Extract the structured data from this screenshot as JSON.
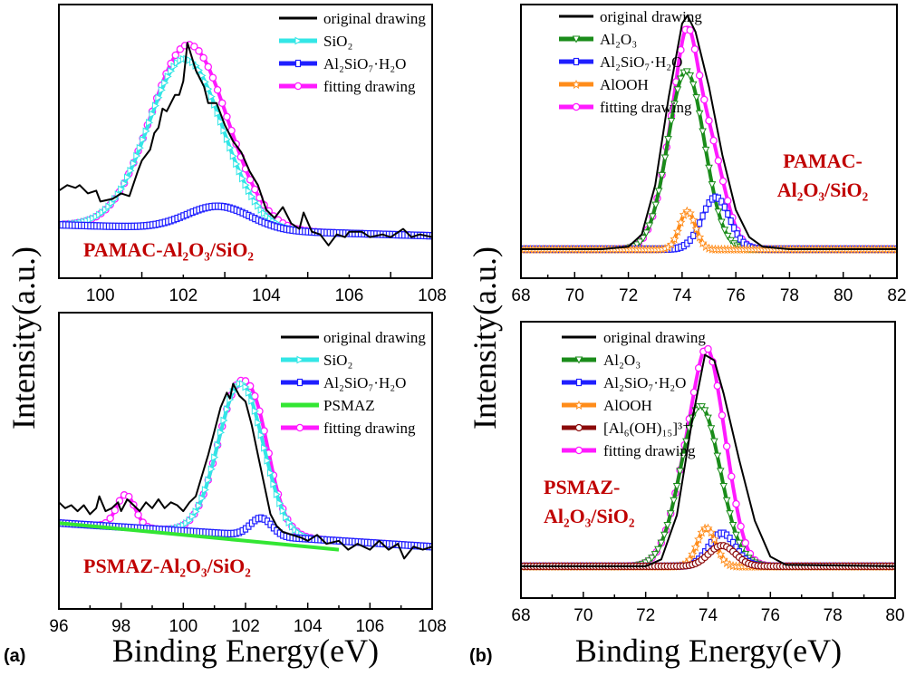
{
  "panel_labels": [
    "(a)",
    "(b)"
  ],
  "ylabel": "Intensity(a.u.)",
  "xlabel": "Binding Energy(eV)",
  "colors": {
    "original drawing": "#000000",
    "SiO₂": "#33e6e6",
    "Al₂SiO₇·H₂O": "#1f1fff",
    "PSMAZ": "#33e633",
    "fitting drawing": "#ff1aff",
    "Al₂O₃": "#1a8c1a",
    "AlOOH": "#ff8c1a",
    "[Al₆(OH)₁₅]³⁺": "#8b0a0a",
    "sample_label": "#c00000"
  },
  "chart_data": [
    {
      "type": "line",
      "panel": "a",
      "sample_label": [
        "PAMAC-Al₂O₃/SiO₂"
      ],
      "xlim": [
        99,
        108
      ],
      "ylim": [
        0,
        1
      ],
      "xticks": [
        "100",
        "102",
        "104",
        "106",
        "108"
      ],
      "grid": false,
      "legend": "top-right",
      "series": [
        {
          "name": "original drawing",
          "points": [
            [
              99,
              0.32
            ],
            [
              99.2,
              0.34
            ],
            [
              99.4,
              0.33
            ],
            [
              99.5,
              0.34
            ],
            [
              99.7,
              0.31
            ],
            [
              99.9,
              0.32
            ],
            [
              100,
              0.28
            ],
            [
              100.3,
              0.29
            ],
            [
              100.5,
              0.31
            ],
            [
              100.7,
              0.3
            ],
            [
              100.9,
              0.39
            ],
            [
              101,
              0.43
            ],
            [
              101.2,
              0.47
            ],
            [
              101.3,
              0.53
            ],
            [
              101.4,
              0.55
            ],
            [
              101.5,
              0.62
            ],
            [
              101.6,
              0.61
            ],
            [
              101.8,
              0.67
            ],
            [
              101.9,
              0.67
            ],
            [
              102,
              0.72
            ],
            [
              102.1,
              0.86
            ],
            [
              102.3,
              0.76
            ],
            [
              102.5,
              0.7
            ],
            [
              102.6,
              0.64
            ],
            [
              102.8,
              0.64
            ],
            [
              103,
              0.56
            ],
            [
              103.2,
              0.5
            ],
            [
              103.4,
              0.46
            ],
            [
              103.6,
              0.39
            ],
            [
              103.8,
              0.34
            ],
            [
              104,
              0.25
            ],
            [
              104.2,
              0.22
            ],
            [
              104.4,
              0.26
            ],
            [
              104.6,
              0.2
            ],
            [
              104.8,
              0.18
            ],
            [
              104.9,
              0.24
            ],
            [
              105.1,
              0.17
            ],
            [
              105.3,
              0.16
            ],
            [
              105.5,
              0.12
            ],
            [
              105.7,
              0.16
            ],
            [
              105.9,
              0.15
            ],
            [
              106,
              0.17
            ],
            [
              106.3,
              0.17
            ],
            [
              106.5,
              0.15
            ],
            [
              106.8,
              0.16
            ],
            [
              107,
              0.15
            ],
            [
              107.3,
              0.18
            ],
            [
              107.5,
              0.15
            ],
            [
              107.7,
              0.16
            ],
            [
              108,
              0.15
            ]
          ]
        },
        {
          "name": "SiO₂",
          "baseline": [
            0.195,
            0.155
          ],
          "peaks": [
            {
              "center": 102.05,
              "height": 0.62,
              "fwhm": 2.1
            }
          ]
        },
        {
          "name": "Al₂SiO₇·H₂O",
          "baseline": [
            0.195,
            0.155
          ],
          "peaks": [
            {
              "center": 102.85,
              "height": 0.085,
              "fwhm": 1.8
            }
          ]
        },
        {
          "name": "fitting drawing",
          "baseline": [
            0.195,
            0.155
          ],
          "peaks": [
            {
              "center": 102.05,
              "height": 0.62,
              "fwhm": 2.1
            },
            {
              "center": 102.85,
              "height": 0.085,
              "fwhm": 1.8
            }
          ]
        }
      ]
    },
    {
      "type": "line",
      "panel": "a",
      "sample_label": [
        "PSMAZ-Al₂O₃/SiO₂"
      ],
      "xlim": [
        96,
        108
      ],
      "ylim": [
        0,
        1
      ],
      "xticks": [
        "96",
        "98",
        "100",
        "102",
        "104",
        "106",
        "108"
      ],
      "grid": false,
      "legend": "top-right",
      "series": [
        {
          "name": "original drawing",
          "points": [
            [
              96,
              0.36
            ],
            [
              96.2,
              0.34
            ],
            [
              96.4,
              0.35
            ],
            [
              96.6,
              0.33
            ],
            [
              96.8,
              0.35
            ],
            [
              97,
              0.32
            ],
            [
              97.2,
              0.34
            ],
            [
              97.3,
              0.38
            ],
            [
              97.5,
              0.33
            ],
            [
              97.7,
              0.34
            ],
            [
              97.9,
              0.36
            ],
            [
              98,
              0.33
            ],
            [
              98.2,
              0.37
            ],
            [
              98.4,
              0.35
            ],
            [
              98.6,
              0.33
            ],
            [
              98.8,
              0.36
            ],
            [
              99,
              0.34
            ],
            [
              99.2,
              0.37
            ],
            [
              99.4,
              0.34
            ],
            [
              99.6,
              0.36
            ],
            [
              99.8,
              0.35
            ],
            [
              100,
              0.33
            ],
            [
              100.2,
              0.36
            ],
            [
              100.4,
              0.38
            ],
            [
              100.6,
              0.45
            ],
            [
              100.8,
              0.52
            ],
            [
              101,
              0.6
            ],
            [
              101.2,
              0.68
            ],
            [
              101.4,
              0.73
            ],
            [
              101.5,
              0.71
            ],
            [
              101.6,
              0.76
            ],
            [
              101.8,
              0.72
            ],
            [
              102,
              0.7
            ],
            [
              102.2,
              0.62
            ],
            [
              102.4,
              0.52
            ],
            [
              102.6,
              0.42
            ],
            [
              102.8,
              0.32
            ],
            [
              103,
              0.28
            ],
            [
              103.2,
              0.26
            ],
            [
              103.5,
              0.25
            ],
            [
              103.8,
              0.24
            ],
            [
              104,
              0.23
            ],
            [
              104.3,
              0.25
            ],
            [
              104.6,
              0.22
            ],
            [
              105,
              0.23
            ],
            [
              105.3,
              0.2
            ],
            [
              105.6,
              0.22
            ],
            [
              106,
              0.2
            ],
            [
              106.3,
              0.23
            ],
            [
              106.6,
              0.2
            ],
            [
              106.9,
              0.22
            ],
            [
              107.1,
              0.17
            ],
            [
              107.4,
              0.21
            ],
            [
              107.7,
              0.2
            ],
            [
              108,
              0.21
            ]
          ]
        },
        {
          "name": "SiO₂",
          "baseline": [
            0.29,
            0.21
          ],
          "peaks": [
            {
              "center": 101.85,
              "height": 0.51,
              "fwhm": 1.7
            }
          ]
        },
        {
          "name": "Al₂SiO₇·H₂O",
          "baseline": [
            0.29,
            0.21
          ],
          "peaks": [
            {
              "center": 102.5,
              "height": 0.06,
              "fwhm": 0.8
            }
          ]
        },
        {
          "name": "PSMAZ",
          "points": [
            [
              96,
              0.29
            ],
            [
              99,
              0.26
            ],
            [
              102,
              0.23
            ],
            [
              105,
              0.2
            ]
          ]
        },
        {
          "name": "fitting drawing",
          "baseline": [
            0.29,
            0.21
          ],
          "peaks": [
            {
              "center": 98.15,
              "height": 0.11,
              "fwhm": 0.7
            },
            {
              "center": 101.85,
              "height": 0.51,
              "fwhm": 1.7
            },
            {
              "center": 102.5,
              "height": 0.06,
              "fwhm": 0.8
            }
          ]
        }
      ]
    },
    {
      "type": "line",
      "panel": "b",
      "sample_label": [
        "PAMAC-",
        "Al₂O₃/SiO₂"
      ],
      "xlim": [
        68,
        82
      ],
      "ylim": [
        0,
        1
      ],
      "xticks": [
        "68",
        "70",
        "72",
        "74",
        "76",
        "78",
        "80",
        "82"
      ],
      "grid": false,
      "legend": "top-right",
      "series": [
        {
          "name": "original drawing",
          "points": [
            [
              68,
              0.106
            ],
            [
              71,
              0.106
            ],
            [
              72,
              0.115
            ],
            [
              72.5,
              0.16
            ],
            [
              73,
              0.34
            ],
            [
              73.5,
              0.66
            ],
            [
              74,
              0.93
            ],
            [
              74.2,
              0.96
            ],
            [
              74.5,
              0.9
            ],
            [
              75,
              0.7
            ],
            [
              75.5,
              0.45
            ],
            [
              76,
              0.25
            ],
            [
              76.5,
              0.15
            ],
            [
              77,
              0.115
            ],
            [
              78,
              0.106
            ],
            [
              82,
              0.106
            ]
          ]
        },
        {
          "name": "Al₂O₃",
          "baseline": [
            0.106,
            0.106
          ],
          "peaks": [
            {
              "center": 74.15,
              "height": 0.65,
              "fwhm": 1.6
            }
          ]
        },
        {
          "name": "Al₂SiO₇·H₂O",
          "baseline": [
            0.106,
            0.106
          ],
          "peaks": [
            {
              "center": 75.25,
              "height": 0.19,
              "fwhm": 1.2
            }
          ]
        },
        {
          "name": "AlOOH",
          "baseline": [
            0.106,
            0.106
          ],
          "peaks": [
            {
              "center": 74.2,
              "height": 0.14,
              "fwhm": 0.7
            }
          ]
        },
        {
          "name": "fitting drawing",
          "baseline": [
            0.106,
            0.106
          ],
          "peaks": [
            {
              "center": 74.15,
              "height": 0.65,
              "fwhm": 1.6
            },
            {
              "center": 75.25,
              "height": 0.19,
              "fwhm": 1.2
            },
            {
              "center": 74.2,
              "height": 0.14,
              "fwhm": 0.7
            }
          ]
        }
      ]
    },
    {
      "type": "line",
      "panel": "b",
      "sample_label": [
        "PSMAZ-",
        "Al₂O₃/SiO₂"
      ],
      "xlim": [
        68,
        80
      ],
      "ylim": [
        0,
        1
      ],
      "xticks": [
        "68",
        "70",
        "72",
        "74",
        "76",
        "78",
        "80"
      ],
      "grid": false,
      "legend": "top-right",
      "series": [
        {
          "name": "original drawing",
          "points": [
            [
              68,
              0.115
            ],
            [
              72,
              0.115
            ],
            [
              72.5,
              0.14
            ],
            [
              73,
              0.3
            ],
            [
              73.5,
              0.65
            ],
            [
              73.9,
              0.88
            ],
            [
              74.2,
              0.86
            ],
            [
              74.5,
              0.74
            ],
            [
              75,
              0.5
            ],
            [
              75.5,
              0.28
            ],
            [
              76,
              0.15
            ],
            [
              76.5,
              0.12
            ],
            [
              80,
              0.115
            ]
          ]
        },
        {
          "name": "Al₂O₃",
          "baseline": [
            0.115,
            0.115
          ],
          "peaks": [
            {
              "center": 73.75,
              "height": 0.58,
              "fwhm": 1.5
            }
          ]
        },
        {
          "name": "Al₂SiO₇·H₂O",
          "baseline": [
            0.115,
            0.115
          ],
          "peaks": [
            {
              "center": 74.45,
              "height": 0.12,
              "fwhm": 1.0
            }
          ]
        },
        {
          "name": "AlOOH",
          "baseline": [
            0.115,
            0.115
          ],
          "peaks": [
            {
              "center": 73.95,
              "height": 0.14,
              "fwhm": 0.7
            }
          ]
        },
        {
          "name": "[Al₆(OH)₁₅]³⁺",
          "baseline": [
            0.115,
            0.115
          ],
          "peaks": [
            {
              "center": 74.45,
              "height": 0.075,
              "fwhm": 1.0
            }
          ]
        },
        {
          "name": "fitting drawing",
          "baseline": [
            0.115,
            0.115
          ],
          "peaks": [
            {
              "center": 73.75,
              "height": 0.58,
              "fwhm": 1.5
            },
            {
              "center": 74.45,
              "height": 0.12,
              "fwhm": 1.0
            },
            {
              "center": 73.95,
              "height": 0.14,
              "fwhm": 0.7
            },
            {
              "center": 74.45,
              "height": 0.075,
              "fwhm": 1.0
            }
          ]
        }
      ]
    }
  ]
}
